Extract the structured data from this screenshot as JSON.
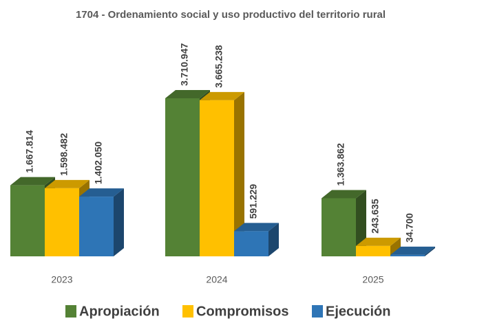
{
  "chart_data": {
    "type": "bar3d",
    "title": "1704 - Ordenamiento social y uso productivo del territorio rural",
    "categories": [
      "2023",
      "2024",
      "2025"
    ],
    "series": [
      {
        "name": "Apropiación",
        "color": "#548235",
        "values": [
          1667814,
          3710947,
          1363862
        ],
        "value_labels": [
          "1.667.814",
          "3.710.947",
          "1.363.862"
        ]
      },
      {
        "name": "Compromisos",
        "color": "#ffc000",
        "values": [
          1598482,
          3665238,
          243635
        ],
        "value_labels": [
          "1.598.482",
          "3.665.238",
          "243.635"
        ]
      },
      {
        "name": "Ejecución",
        "color": "#2e75b6",
        "values": [
          1402050,
          591229,
          34700
        ],
        "value_labels": [
          "1.402.050",
          "591.229",
          "34.700"
        ]
      }
    ],
    "legend": "bottom"
  }
}
